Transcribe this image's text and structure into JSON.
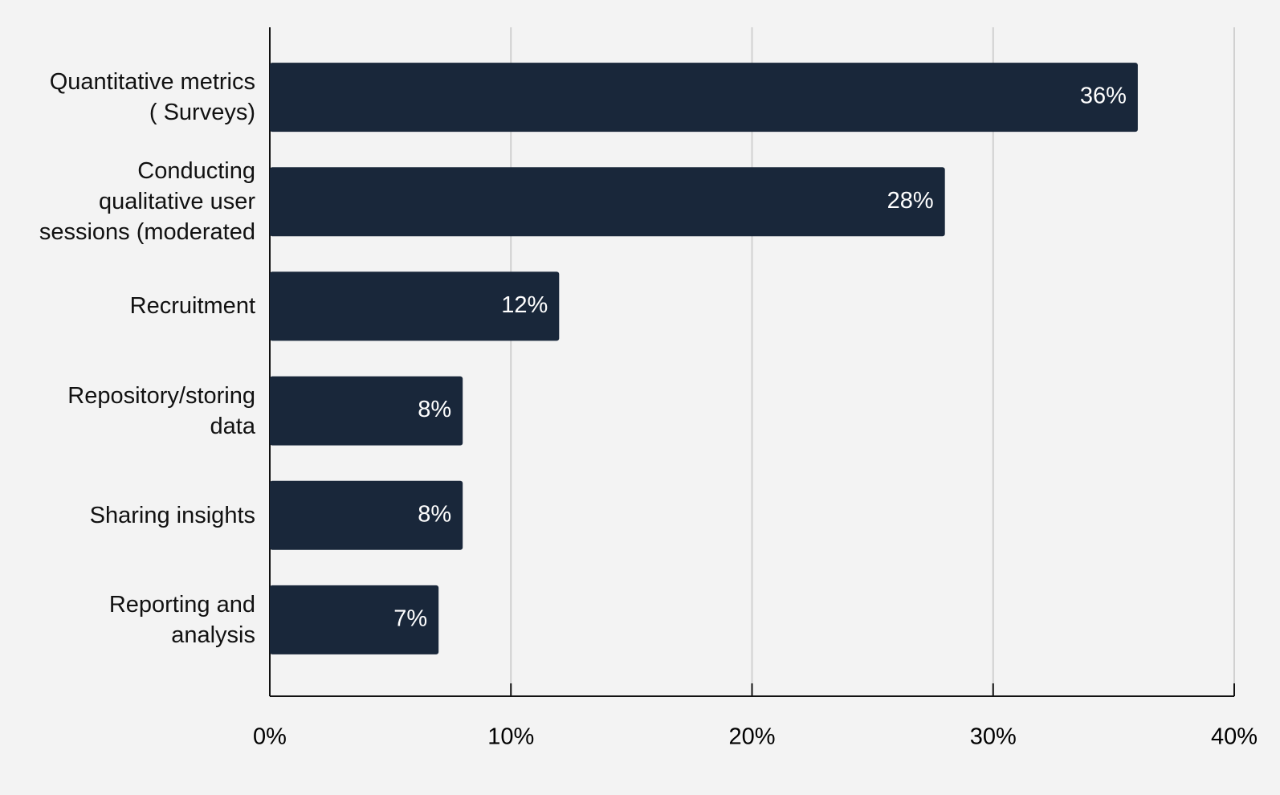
{
  "chart_data": {
    "type": "hbar",
    "categories": [
      "Quantitative metrics\n( Surveys)",
      "Conducting\nqualitative user\nsessions (moderated",
      "Recruitment",
      "Repository/storing\ndata",
      "Sharing insights",
      "Reporting and\nanalysis"
    ],
    "values": [
      36,
      28,
      12,
      8,
      8,
      7
    ],
    "value_labels": [
      "36%",
      "28%",
      "12%",
      "8%",
      "8%",
      "7%"
    ],
    "color": "#19273a",
    "xlim": [
      0,
      40
    ],
    "xticks": [
      {
        "value": 0,
        "label": "0%"
      },
      {
        "value": 10,
        "label": "10%"
      },
      {
        "value": 20,
        "label": "20%"
      },
      {
        "value": 30,
        "label": "30%"
      },
      {
        "value": 40,
        "label": "40%"
      }
    ],
    "grid": true
  }
}
